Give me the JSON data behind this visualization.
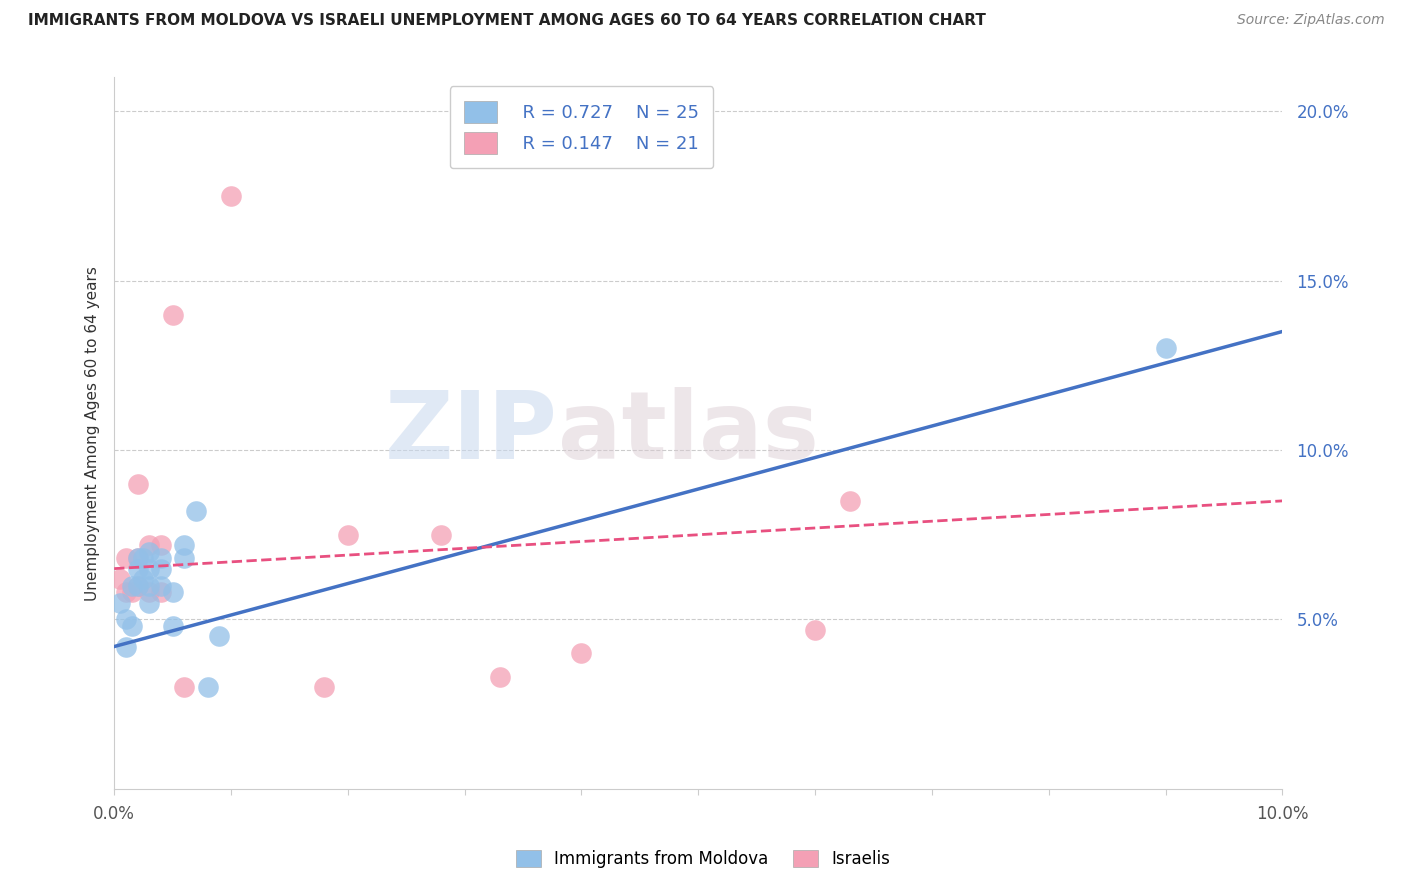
{
  "title": "IMMIGRANTS FROM MOLDOVA VS ISRAELI UNEMPLOYMENT AMONG AGES 60 TO 64 YEARS CORRELATION CHART",
  "source": "Source: ZipAtlas.com",
  "ylabel": "Unemployment Among Ages 60 to 64 years",
  "xlim": [
    0.0,
    0.1
  ],
  "ylim": [
    0.0,
    0.21
  ],
  "right_yticks": [
    0.05,
    0.1,
    0.15,
    0.2
  ],
  "right_yticklabels": [
    "5.0%",
    "10.0%",
    "15.0%",
    "20.0%"
  ],
  "xticks": [
    0.0,
    0.01,
    0.02,
    0.03,
    0.04,
    0.05,
    0.06,
    0.07,
    0.08,
    0.09,
    0.1
  ],
  "blue_color": "#92C0E8",
  "pink_color": "#F4A0B5",
  "blue_line_color": "#4472C4",
  "pink_line_color": "#E85080",
  "legend_blue_label": "Immigrants from Moldova",
  "legend_pink_label": "Israelis",
  "R_blue": "0.727",
  "N_blue": "25",
  "R_pink": "0.147",
  "N_pink": "21",
  "watermark_zip": "ZIP",
  "watermark_atlas": "atlas",
  "blue_scatter_x": [
    0.0005,
    0.001,
    0.001,
    0.0015,
    0.0015,
    0.002,
    0.002,
    0.002,
    0.0025,
    0.0025,
    0.003,
    0.003,
    0.003,
    0.003,
    0.004,
    0.004,
    0.004,
    0.005,
    0.005,
    0.006,
    0.006,
    0.007,
    0.008,
    0.009,
    0.09
  ],
  "blue_scatter_y": [
    0.055,
    0.042,
    0.05,
    0.048,
    0.06,
    0.06,
    0.065,
    0.068,
    0.062,
    0.068,
    0.055,
    0.06,
    0.065,
    0.07,
    0.06,
    0.065,
    0.068,
    0.048,
    0.058,
    0.068,
    0.072,
    0.082,
    0.03,
    0.045,
    0.13
  ],
  "pink_scatter_x": [
    0.0005,
    0.001,
    0.001,
    0.0015,
    0.002,
    0.002,
    0.002,
    0.003,
    0.003,
    0.004,
    0.004,
    0.005,
    0.006,
    0.01,
    0.018,
    0.02,
    0.028,
    0.033,
    0.04,
    0.06,
    0.063
  ],
  "pink_scatter_y": [
    0.062,
    0.058,
    0.068,
    0.058,
    0.06,
    0.068,
    0.09,
    0.058,
    0.072,
    0.058,
    0.072,
    0.14,
    0.03,
    0.175,
    0.03,
    0.075,
    0.075,
    0.033,
    0.04,
    0.047,
    0.085
  ],
  "blue_line_x": [
    0.0,
    0.1
  ],
  "blue_line_y": [
    0.042,
    0.135
  ],
  "pink_line_x": [
    0.0,
    0.1
  ],
  "pink_line_y": [
    0.065,
    0.085
  ],
  "grid_color": "#CCCCCC",
  "bg_color": "#FFFFFF",
  "title_fontsize": 11,
  "ylabel_fontsize": 11,
  "tick_fontsize": 12,
  "legend_fontsize": 13
}
